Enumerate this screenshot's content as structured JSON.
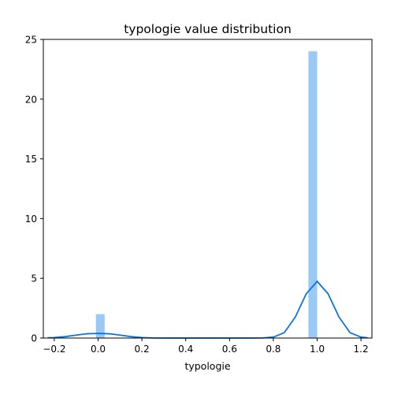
{
  "chart_data": {
    "type": "bar",
    "title": "typologie value distribution",
    "xlabel": "typologie",
    "ylabel": "",
    "xlim": [
      -0.25,
      1.25
    ],
    "ylim": [
      0,
      25
    ],
    "xticks": [
      -0.2,
      0.0,
      0.2,
      0.4,
      0.6,
      0.8,
      1.0,
      1.2
    ],
    "xtick_labels": [
      "−0.2",
      "0.0",
      "0.2",
      "0.4",
      "0.6",
      "0.8",
      "1.0",
      "1.2"
    ],
    "yticks": [
      0,
      5,
      10,
      15,
      20,
      25
    ],
    "ytick_labels": [
      "0",
      "5",
      "10",
      "15",
      "20",
      "25"
    ],
    "grid": false,
    "histogram": {
      "bin_width": 0.04,
      "bars": [
        {
          "x_start": -0.01,
          "x_end": 0.03,
          "count": 2
        },
        {
          "x_start": 0.96,
          "x_end": 1.0,
          "count": 24
        }
      ],
      "color": "#99c9f5"
    },
    "kde": {
      "x": [
        -0.23,
        -0.2,
        -0.15,
        -0.1,
        -0.05,
        0.0,
        0.05,
        0.1,
        0.15,
        0.2,
        0.25,
        0.3,
        0.4,
        0.5,
        0.6,
        0.7,
        0.75,
        0.8,
        0.85,
        0.9,
        0.95,
        1.0,
        1.05,
        1.1,
        1.15,
        1.2,
        1.23
      ],
      "y": [
        0.02,
        0.04,
        0.12,
        0.25,
        0.36,
        0.39,
        0.36,
        0.25,
        0.12,
        0.04,
        0.01,
        0.0,
        0.0,
        0.0,
        0.0,
        0.0,
        0.01,
        0.08,
        0.45,
        1.75,
        3.7,
        4.75,
        3.7,
        1.75,
        0.45,
        0.08,
        0.02
      ],
      "color": "#0a74da"
    }
  }
}
